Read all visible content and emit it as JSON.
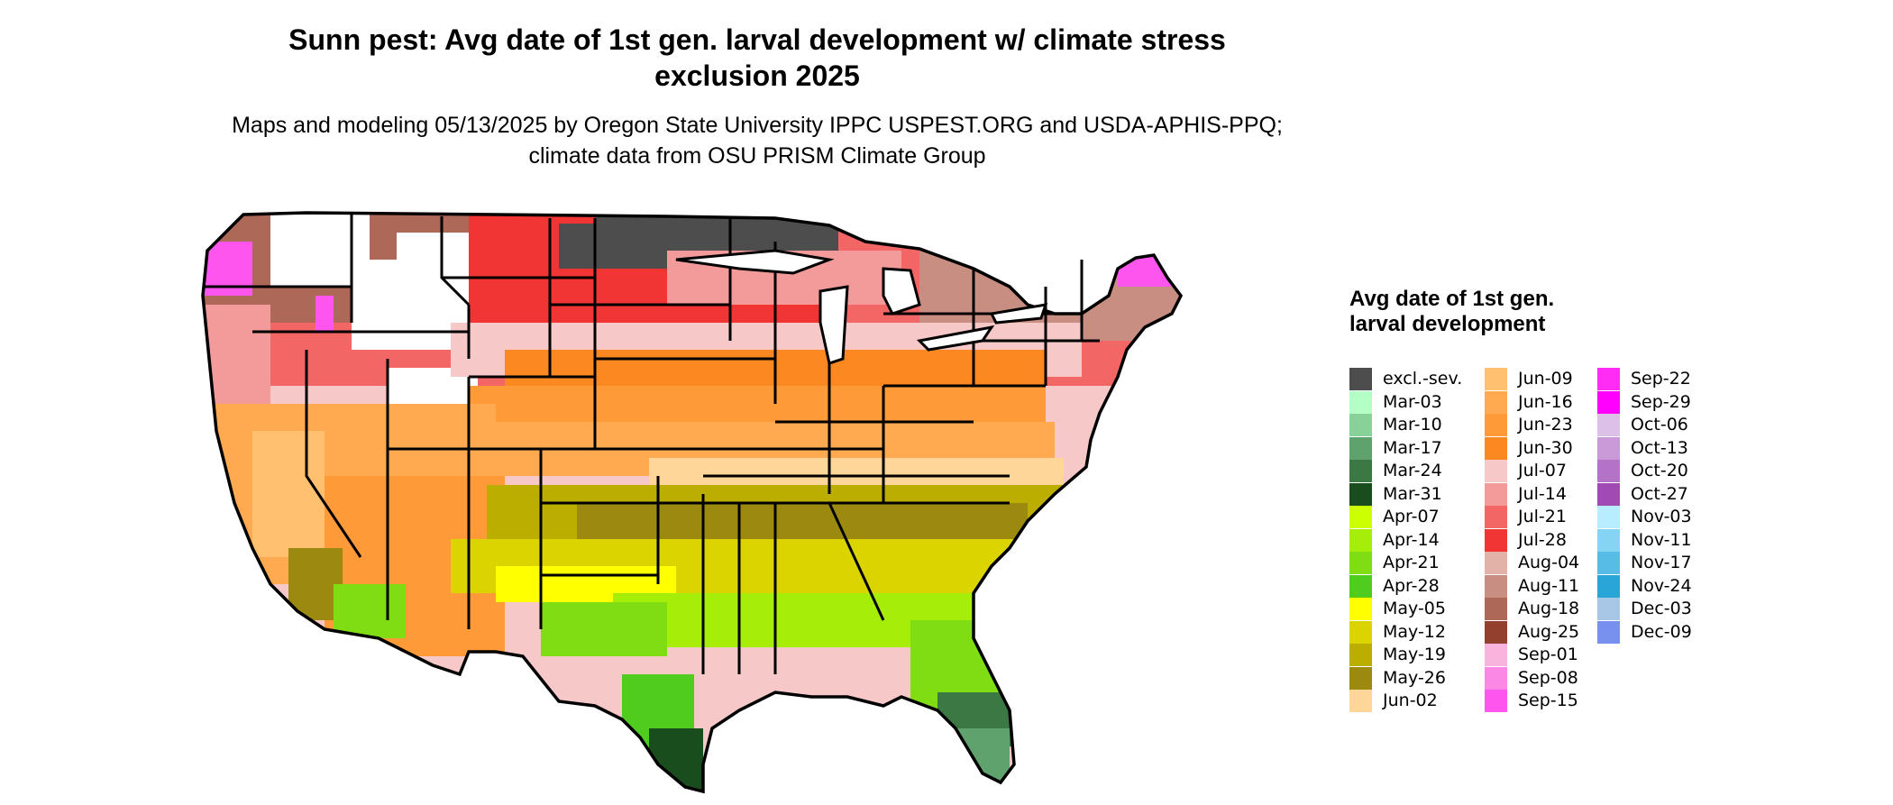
{
  "title": "Sunn pest: Avg date of 1st gen. larval development w/ climate stress exclusion 2025",
  "subtitle": "Maps and modeling 05/13/2025 by Oregon State University IPPC USPEST.ORG and USDA-APHIS-PPQ; climate data from OSU PRISM Climate Group",
  "legend": {
    "title": "Avg date of 1st gen. larval development",
    "columns": [
      [
        {
          "label": "excl.-sev.",
          "color": "#4d4d4d"
        },
        {
          "label": "Mar-03",
          "color": "#b3ffc6"
        },
        {
          "label": "Mar-10",
          "color": "#88d199"
        },
        {
          "label": "Mar-17",
          "color": "#5fa26d"
        },
        {
          "label": "Mar-24",
          "color": "#3b7843"
        },
        {
          "label": "Mar-31",
          "color": "#1a4d1e"
        },
        {
          "label": "Apr-07",
          "color": "#ccff00"
        },
        {
          "label": "Apr-14",
          "color": "#a6ee0a"
        },
        {
          "label": "Apr-21",
          "color": "#80dd14"
        },
        {
          "label": "Apr-28",
          "color": "#4fcc1e"
        },
        {
          "label": "May-05",
          "color": "#ffff00"
        },
        {
          "label": "May-12",
          "color": "#dcd400"
        },
        {
          "label": "May-19",
          "color": "#bcae00"
        },
        {
          "label": "May-26",
          "color": "#9c8a10"
        },
        {
          "label": "Jun-02",
          "color": "#ffd699"
        }
      ],
      [
        {
          "label": "Jun-09",
          "color": "#ffc070"
        },
        {
          "label": "Jun-16",
          "color": "#ffaa50"
        },
        {
          "label": "Jun-23",
          "color": "#fe9a38"
        },
        {
          "label": "Jun-30",
          "color": "#fb8820"
        },
        {
          "label": "Jul-07",
          "color": "#f6c8c8"
        },
        {
          "label": "Jul-14",
          "color": "#f39a9a"
        },
        {
          "label": "Jul-21",
          "color": "#f26666"
        },
        {
          "label": "Jul-28",
          "color": "#f13434"
        },
        {
          "label": "Aug-04",
          "color": "#e2b2a8"
        },
        {
          "label": "Aug-11",
          "color": "#c98e82"
        },
        {
          "label": "Aug-18",
          "color": "#ad6857"
        },
        {
          "label": "Aug-25",
          "color": "#94402e"
        },
        {
          "label": "Sep-01",
          "color": "#f8b4dd"
        },
        {
          "label": "Sep-08",
          "color": "#fb88e4"
        },
        {
          "label": "Sep-15",
          "color": "#fd55ee"
        }
      ],
      [
        {
          "label": "Sep-22",
          "color": "#fe2cf5"
        },
        {
          "label": "Sep-29",
          "color": "#ff00ff"
        },
        {
          "label": "Oct-06",
          "color": "#dcc0e8"
        },
        {
          "label": "Oct-13",
          "color": "#c999d8"
        },
        {
          "label": "Oct-20",
          "color": "#b573c8"
        },
        {
          "label": "Oct-27",
          "color": "#a04ab6"
        },
        {
          "label": "Nov-03",
          "color": "#b8ecff"
        },
        {
          "label": "Nov-11",
          "color": "#86d4f3"
        },
        {
          "label": "Nov-17",
          "color": "#58bde6"
        },
        {
          "label": "Nov-24",
          "color": "#2aa5d8"
        },
        {
          "label": "Dec-03",
          "color": "#a8c6e6"
        },
        {
          "label": "Dec-09",
          "color": "#7891ee"
        }
      ]
    ]
  }
}
